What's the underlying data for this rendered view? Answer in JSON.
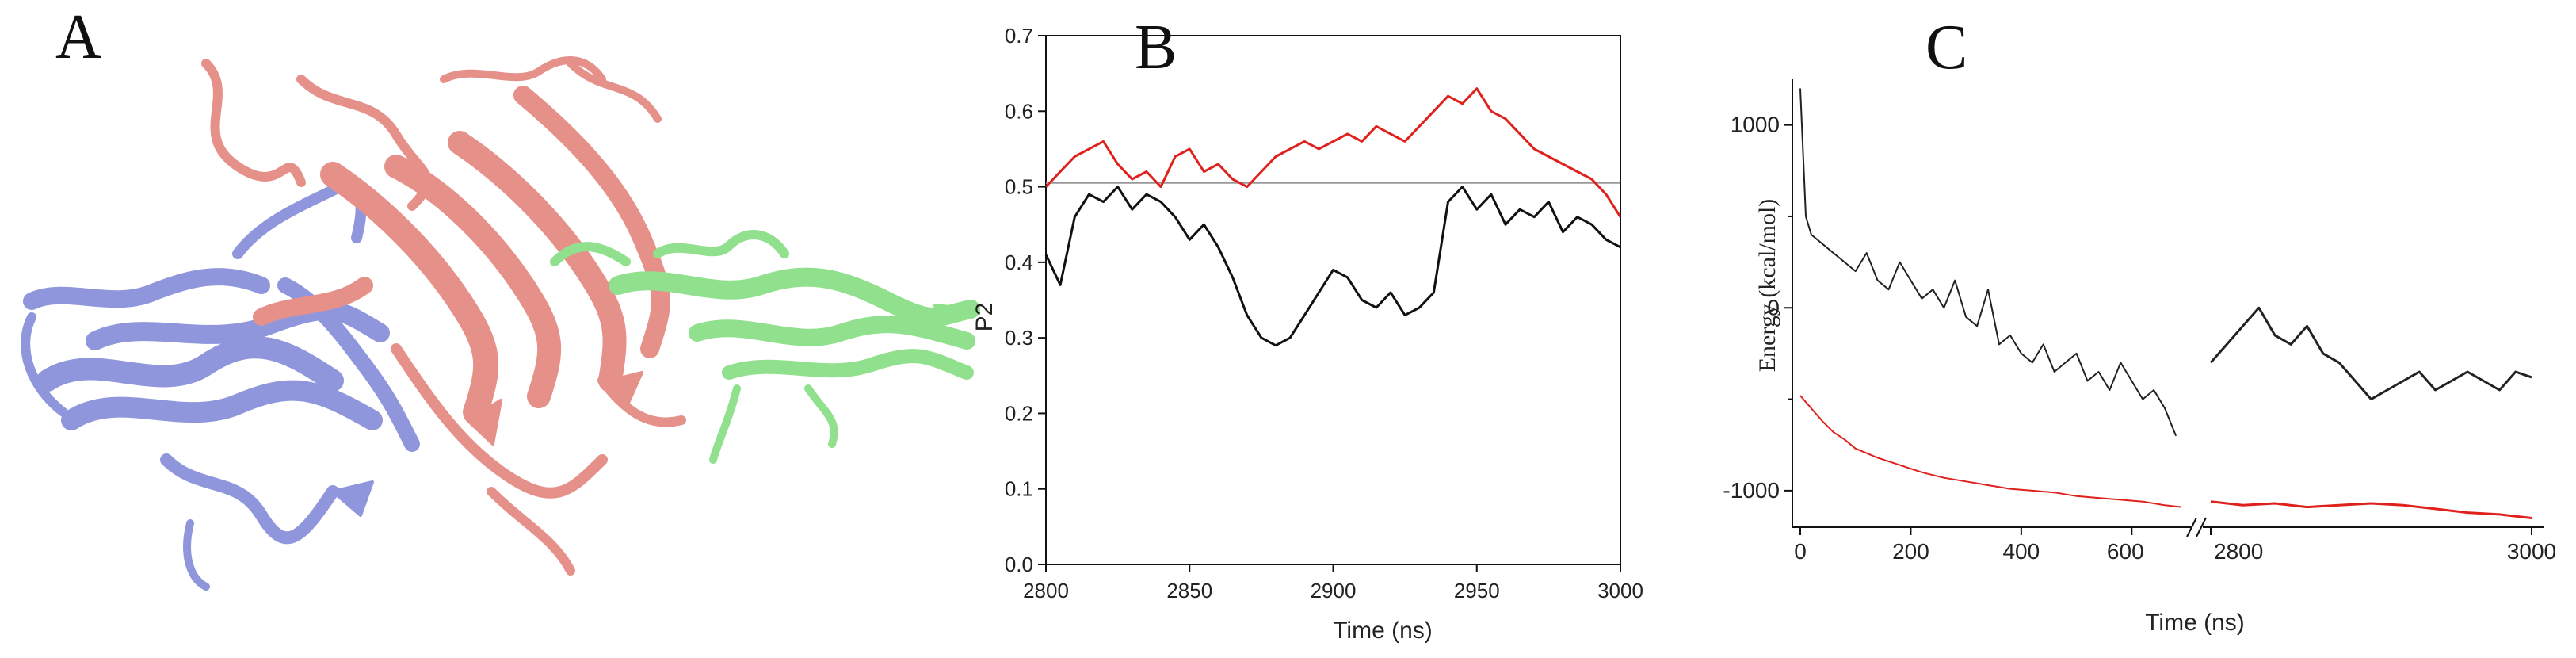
{
  "panels": {
    "a": {
      "letter": "A"
    },
    "b": {
      "letter": "B"
    },
    "c": {
      "letter": "C"
    }
  },
  "protein": {
    "colors": {
      "domain1": "#8f96dc",
      "domain2": "#e6908a",
      "domain3": "#90e08e"
    }
  },
  "chart_data": [
    {
      "type": "line",
      "panel": "B",
      "title": "",
      "xlabel": "Time (ns)",
      "ylabel": "P2",
      "xlim": [
        2800,
        3000
      ],
      "ylim": [
        0.0,
        0.7
      ],
      "xticks": [
        "2800",
        "2850",
        "2900",
        "2950",
        "3000"
      ],
      "yticks": [
        "0.0",
        "0.1",
        "0.2",
        "0.3",
        "0.4",
        "0.5",
        "0.6",
        "0.7"
      ],
      "grid": false,
      "reference_line": {
        "y": 0.505,
        "color": "#999999"
      },
      "series": [
        {
          "color": "#e0201c",
          "x": [
            2800,
            2805,
            2810,
            2815,
            2820,
            2825,
            2830,
            2835,
            2840,
            2845,
            2850,
            2855,
            2860,
            2865,
            2870,
            2875,
            2880,
            2885,
            2890,
            2895,
            2900,
            2905,
            2910,
            2915,
            2920,
            2925,
            2930,
            2935,
            2940,
            2945,
            2950,
            2955,
            2960,
            2965,
            2970,
            2975,
            2980,
            2985,
            2990,
            2995,
            3000
          ],
          "y": [
            0.5,
            0.52,
            0.54,
            0.55,
            0.56,
            0.53,
            0.51,
            0.52,
            0.5,
            0.54,
            0.55,
            0.52,
            0.53,
            0.51,
            0.5,
            0.52,
            0.54,
            0.55,
            0.56,
            0.55,
            0.56,
            0.57,
            0.56,
            0.58,
            0.57,
            0.56,
            0.58,
            0.6,
            0.62,
            0.61,
            0.63,
            0.6,
            0.59,
            0.57,
            0.55,
            0.54,
            0.53,
            0.52,
            0.51,
            0.49,
            0.46
          ]
        },
        {
          "color": "#111111",
          "x": [
            2800,
            2805,
            2810,
            2815,
            2820,
            2825,
            2830,
            2835,
            2840,
            2845,
            2850,
            2855,
            2860,
            2865,
            2870,
            2875,
            2880,
            2885,
            2890,
            2895,
            2900,
            2905,
            2910,
            2915,
            2920,
            2925,
            2930,
            2935,
            2940,
            2945,
            2950,
            2955,
            2960,
            2965,
            2970,
            2975,
            2980,
            2985,
            2990,
            2995,
            3000
          ],
          "y": [
            0.41,
            0.37,
            0.46,
            0.49,
            0.48,
            0.5,
            0.47,
            0.49,
            0.48,
            0.46,
            0.43,
            0.45,
            0.42,
            0.38,
            0.33,
            0.3,
            0.29,
            0.3,
            0.33,
            0.36,
            0.39,
            0.38,
            0.35,
            0.34,
            0.36,
            0.33,
            0.34,
            0.36,
            0.48,
            0.5,
            0.47,
            0.49,
            0.45,
            0.47,
            0.46,
            0.48,
            0.44,
            0.46,
            0.45,
            0.43,
            0.42
          ]
        }
      ]
    },
    {
      "type": "line",
      "panel": "C",
      "title": "",
      "xlabel": "Time (ns)",
      "ylabel": "Energy (kcal/mol)",
      "ylim": [
        -1200,
        1250
      ],
      "xticks": [
        "0",
        "200",
        "400",
        "600",
        "2800",
        "3000"
      ],
      "yticks": [
        "1000",
        "0",
        "-1000"
      ],
      "axis_break": {
        "from": 700,
        "to": 2800
      },
      "grid": false,
      "segments": [
        {
          "xlim": [
            0,
            700
          ]
        },
        {
          "xlim": [
            2800,
            3000
          ]
        }
      ],
      "series": [
        {
          "color": "#222222",
          "segments": [
            {
              "x": [
                0,
                10,
                20,
                40,
                60,
                80,
                100,
                120,
                140,
                160,
                180,
                200,
                220,
                240,
                260,
                280,
                300,
                320,
                340,
                360,
                380,
                400,
                420,
                440,
                460,
                480,
                500,
                520,
                540,
                560,
                580,
                600,
                620,
                640,
                660,
                680
              ],
              "y": [
                1200,
                500,
                400,
                350,
                300,
                250,
                200,
                300,
                150,
                100,
                250,
                150,
                50,
                100,
                0,
                150,
                -50,
                -100,
                100,
                -200,
                -150,
                -250,
                -300,
                -200,
                -350,
                -300,
                -250,
                -400,
                -350,
                -450,
                -300,
                -400,
                -500,
                -450,
                -550,
                -700
              ]
            },
            {
              "x": [
                2800,
                2810,
                2820,
                2830,
                2840,
                2850,
                2860,
                2870,
                2880,
                2890,
                2900,
                2910,
                2920,
                2930,
                2940,
                2950,
                2960,
                2970,
                2980,
                2990,
                3000
              ],
              "y": [
                -300,
                -200,
                -100,
                0,
                -150,
                -200,
                -100,
                -250,
                -300,
                -400,
                -500,
                -450,
                -400,
                -350,
                -450,
                -400,
                -350,
                -400,
                -450,
                -350,
                -380
              ]
            }
          ]
        },
        {
          "color": "#e0201c",
          "segments": [
            {
              "x": [
                0,
                20,
                40,
                60,
                80,
                100,
                140,
                180,
                220,
                260,
                300,
                340,
                380,
                420,
                460,
                500,
                540,
                580,
                620,
                660,
                690
              ],
              "y": [
                -480,
                -550,
                -620,
                -680,
                -720,
                -770,
                -820,
                -860,
                -900,
                -930,
                -950,
                -970,
                -990,
                -1000,
                -1010,
                -1030,
                -1040,
                -1050,
                -1060,
                -1080,
                -1090
              ]
            },
            {
              "x": [
                2800,
                2820,
                2840,
                2860,
                2880,
                2900,
                2920,
                2940,
                2960,
                2980,
                3000
              ],
              "y": [
                -1060,
                -1080,
                -1070,
                -1090,
                -1080,
                -1070,
                -1080,
                -1100,
                -1120,
                -1130,
                -1150
              ]
            }
          ]
        }
      ]
    }
  ]
}
